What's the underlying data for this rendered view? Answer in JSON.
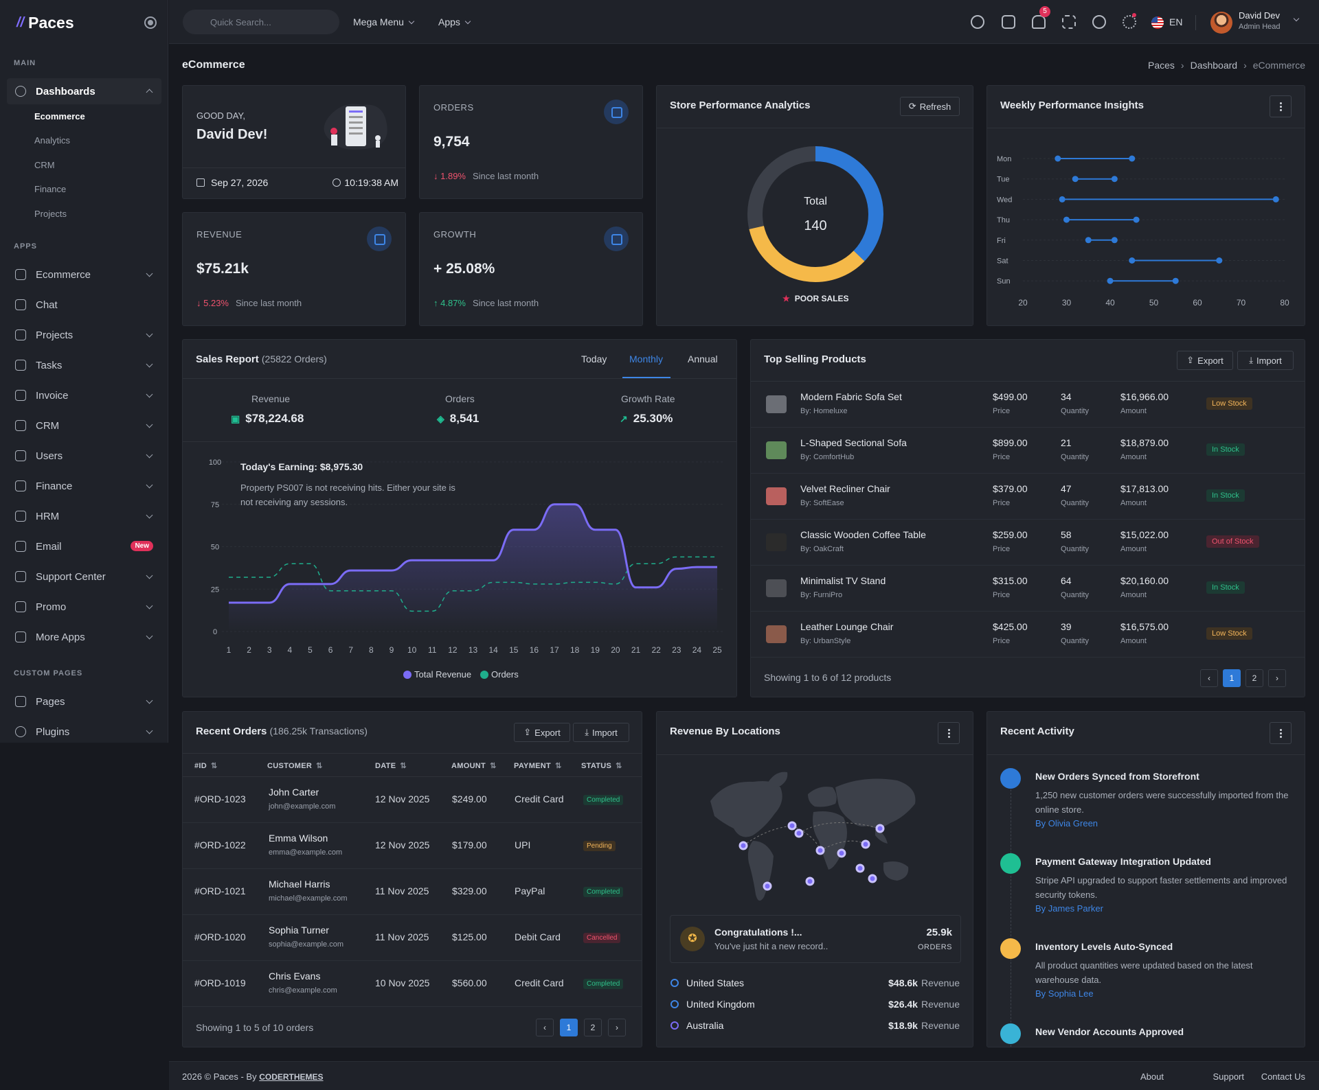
{
  "brand": {
    "name": "Paces"
  },
  "sidebar": {
    "sections": [
      "MAIN",
      "APPS",
      "CUSTOM PAGES"
    ],
    "dashboards": {
      "label": "Dashboards",
      "sub": [
        "Ecommerce",
        "Analytics",
        "CRM",
        "Finance",
        "Projects"
      ]
    },
    "apps": [
      "Ecommerce",
      "Chat",
      "Projects",
      "Tasks",
      "Invoice",
      "CRM",
      "Users",
      "Finance",
      "HRM",
      "Email",
      "Support Center",
      "Promo",
      "More Apps"
    ],
    "email_badge": "New",
    "custom": [
      "Pages",
      "Plugins"
    ]
  },
  "topbar": {
    "search_placeholder": "Quick Search...",
    "mega_menu": "Mega Menu",
    "apps": "Apps",
    "notif_count": "5",
    "lang": "EN",
    "user_name": "David Dev",
    "user_role": "Admin Head"
  },
  "page": {
    "title": "eCommerce",
    "breadcrumb": [
      "Paces",
      "Dashboard",
      "eCommerce"
    ]
  },
  "welcome": {
    "greeting": "GOOD DAY,",
    "name": "David Dev!",
    "date": "Sep 27, 2026",
    "time": "10:19:38 AM"
  },
  "stats": [
    {
      "label": "ORDERS",
      "value": "9,754",
      "change": "1.89%",
      "dir": "down",
      "since": "Since last month"
    },
    {
      "label": "REVENUE",
      "value": "$75.21k",
      "change": "5.23%",
      "dir": "down",
      "since": "Since last month"
    },
    {
      "label": "GROWTH",
      "value": "+ 25.08%",
      "change": "4.87%",
      "dir": "up",
      "since": "Since last month"
    }
  ],
  "store": {
    "title": "Store Performance Analytics",
    "refresh": "Refresh",
    "total_label": "Total",
    "total": "140",
    "status": "POOR SALES",
    "segments": [
      {
        "value": 52,
        "color": "#2e7ad8"
      },
      {
        "value": 48,
        "color": "#f5b949"
      },
      {
        "value": 40,
        "color": "#3c4049"
      }
    ]
  },
  "weekly": {
    "title": "Weekly Performance Insights",
    "chart_data": {
      "type": "dumbbell",
      "categories": [
        "Mon",
        "Tue",
        "Wed",
        "Thu",
        "Fri",
        "Sat",
        "Sun"
      ],
      "start": [
        28,
        32,
        29,
        30,
        35,
        45,
        40
      ],
      "end": [
        45,
        41,
        78,
        46,
        41,
        65,
        55
      ],
      "xticks": [
        20,
        30,
        40,
        50,
        60,
        70,
        80
      ],
      "xlim": [
        20,
        80
      ]
    }
  },
  "sales": {
    "title": "Sales Report",
    "orders_note": "(25822 Orders)",
    "tabs": [
      "Today",
      "Monthly",
      "Annual"
    ],
    "metrics": [
      {
        "label": "Revenue",
        "value": "$78,224.68"
      },
      {
        "label": "Orders",
        "value": "8,541"
      },
      {
        "label": "Growth Rate",
        "value": "25.30%"
      }
    ],
    "earning": "Today's Earning: $8,975.30",
    "note": "Property PS007 is not receiving hits. Either your site is not receiving any sessions.",
    "chart_data": {
      "type": "line",
      "x": [
        1,
        2,
        3,
        4,
        5,
        6,
        7,
        8,
        9,
        10,
        11,
        12,
        13,
        14,
        15,
        16,
        17,
        18,
        19,
        20,
        21,
        22,
        23,
        24,
        25
      ],
      "series": [
        {
          "name": "Total Revenue",
          "color": "#7b6cf6",
          "values": [
            17,
            17,
            17,
            28,
            28,
            28,
            36,
            36,
            36,
            42,
            42,
            42,
            42,
            42,
            60,
            60,
            75,
            75,
            60,
            60,
            26,
            26,
            37,
            38,
            38
          ]
        },
        {
          "name": "Orders",
          "color": "#1fae8c",
          "values": [
            32,
            32,
            32,
            40,
            40,
            24,
            24,
            24,
            24,
            12,
            12,
            24,
            24,
            29,
            29,
            28,
            28,
            29,
            29,
            28,
            40,
            40,
            44,
            44,
            44
          ]
        }
      ],
      "yticks": [
        0,
        25,
        50,
        75,
        100
      ],
      "ylim": [
        0,
        100
      ]
    }
  },
  "products": {
    "title": "Top Selling Products",
    "export": "Export",
    "import": "Import",
    "price_label": "Price",
    "qty_label": "Quantity",
    "amount_label": "Amount",
    "rows": [
      {
        "name": "Modern Fabric Sofa Set",
        "by": "By: Homeluxe",
        "price": "$499.00",
        "qty": "34",
        "amount": "$16,966.00",
        "status": "Low Stock",
        "cls": "low",
        "thumb": "#6b6e75"
      },
      {
        "name": "L-Shaped Sectional Sofa",
        "by": "By: ComfortHub",
        "price": "$899.00",
        "qty": "21",
        "amount": "$18,879.00",
        "status": "In Stock",
        "cls": "in",
        "thumb": "#5f8a5a"
      },
      {
        "name": "Velvet Recliner Chair",
        "by": "By: SoftEase",
        "price": "$379.00",
        "qty": "47",
        "amount": "$17,813.00",
        "status": "In Stock",
        "cls": "in",
        "thumb": "#b9605e"
      },
      {
        "name": "Classic Wooden Coffee Table",
        "by": "By: OakCraft",
        "price": "$259.00",
        "qty": "58",
        "amount": "$15,022.00",
        "status": "Out of Stock",
        "cls": "out",
        "thumb": "#2b2b2b"
      },
      {
        "name": "Minimalist TV Stand",
        "by": "By: FurniPro",
        "price": "$315.00",
        "qty": "64",
        "amount": "$20,160.00",
        "status": "In Stock",
        "cls": "in",
        "thumb": "#4d4f55"
      },
      {
        "name": "Leather Lounge Chair",
        "by": "By: UrbanStyle",
        "price": "$425.00",
        "qty": "39",
        "amount": "$16,575.00",
        "status": "Low Stock",
        "cls": "low",
        "thumb": "#8a5a4a"
      }
    ],
    "showing": "Showing 1 to 6 of 12 products",
    "pages": [
      "1",
      "2"
    ]
  },
  "orders": {
    "title": "Recent Orders",
    "note": "(186.25k Transactions)",
    "export": "Export",
    "import": "Import",
    "headers": [
      "#ID",
      "CUSTOMER",
      "DATE",
      "AMOUNT",
      "PAYMENT",
      "STATUS"
    ],
    "rows": [
      {
        "id": "#ORD-1023",
        "name": "John Carter",
        "email": "john@example.com",
        "date": "12 Nov 2025",
        "amount": "$249.00",
        "payment": "Credit Card",
        "status": "Completed",
        "cls": "comp"
      },
      {
        "id": "#ORD-1022",
        "name": "Emma Wilson",
        "email": "emma@example.com",
        "date": "12 Nov 2025",
        "amount": "$179.00",
        "payment": "UPI",
        "status": "Pending",
        "cls": "pend"
      },
      {
        "id": "#ORD-1021",
        "name": "Michael Harris",
        "email": "michael@example.com",
        "date": "11 Nov 2025",
        "amount": "$329.00",
        "payment": "PayPal",
        "status": "Completed",
        "cls": "comp"
      },
      {
        "id": "#ORD-1020",
        "name": "Sophia Turner",
        "email": "sophia@example.com",
        "date": "11 Nov 2025",
        "amount": "$125.00",
        "payment": "Debit Card",
        "status": "Cancelled",
        "cls": "canc"
      },
      {
        "id": "#ORD-1019",
        "name": "Chris Evans",
        "email": "chris@example.com",
        "date": "10 Nov 2025",
        "amount": "$560.00",
        "payment": "Credit Card",
        "status": "Completed",
        "cls": "comp"
      }
    ],
    "showing": "Showing 1 to 5 of 10 orders",
    "pages": [
      "1",
      "2"
    ]
  },
  "locations": {
    "title": "Revenue By Locations",
    "congrats_title": "Congratulations !...",
    "congrats_text": "You've just hit a new record..",
    "record_value": "25.9k",
    "record_label": "ORDERS",
    "revenue_label": "Revenue",
    "rows": [
      {
        "name": "United States",
        "value": "$48.6k",
        "color": "#3e86e6"
      },
      {
        "name": "United Kingdom",
        "value": "$26.4k",
        "color": "#3e86e6"
      },
      {
        "name": "Australia",
        "value": "$18.9k",
        "color": "#7b6cf6"
      }
    ]
  },
  "activity": {
    "title": "Recent Activity",
    "items": [
      {
        "title": "New Orders Synced from Storefront",
        "desc": "1,250 new customer orders were successfully imported from the online store.",
        "by": "By Olivia Green",
        "color": "#2e7ad8"
      },
      {
        "title": "Payment Gateway Integration Updated",
        "desc": "Stripe API upgraded to support faster settlements and improved security tokens.",
        "by": "By James Parker",
        "color": "#1fbf93"
      },
      {
        "title": "Inventory Levels Auto-Synced",
        "desc": "All product quantities were updated based on the latest warehouse data.",
        "by": "By Sophia Lee",
        "color": "#f5b949"
      },
      {
        "title": "New Vendor Accounts Approved",
        "desc": "",
        "by": "",
        "color": "#39b3d6"
      }
    ]
  },
  "footer": {
    "copy": "2026 © Paces - By",
    "brand": "CODERTHEMES",
    "links": [
      "About",
      "Support",
      "Contact Us"
    ]
  }
}
